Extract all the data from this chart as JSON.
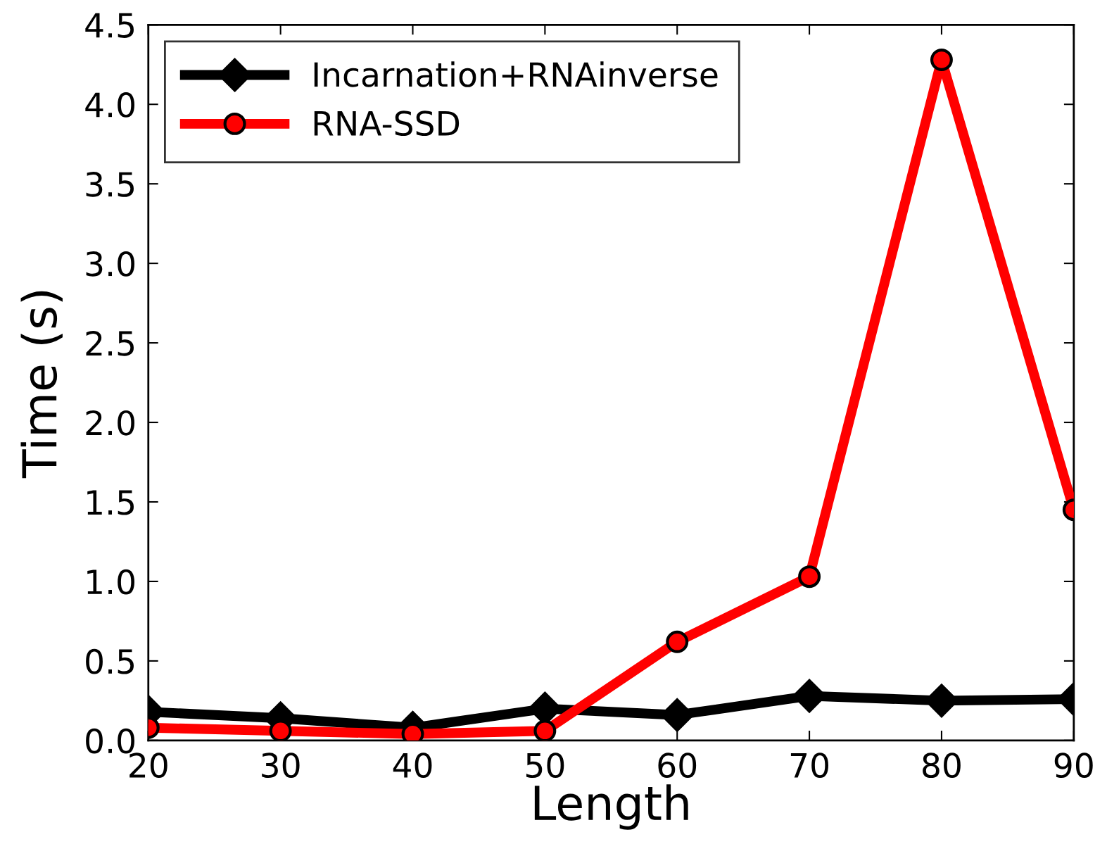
{
  "chart_data": {
    "type": "line",
    "xlabel": "Length",
    "ylabel": "Time (s)",
    "x": [
      20,
      30,
      40,
      50,
      60,
      70,
      80,
      90
    ],
    "series": [
      {
        "name": "Incarnation+RNAinverse",
        "color": "#000000",
        "marker": "diamond",
        "values": [
          0.18,
          0.14,
          0.08,
          0.2,
          0.16,
          0.28,
          0.25,
          0.26
        ]
      },
      {
        "name": "RNA-SSD",
        "color": "#ff0000",
        "marker": "circle",
        "values": [
          0.08,
          0.06,
          0.04,
          0.06,
          0.62,
          1.03,
          4.28,
          1.45
        ]
      }
    ],
    "xlim": [
      20,
      90
    ],
    "xticks": [
      20,
      30,
      40,
      50,
      60,
      70,
      80,
      90
    ],
    "ylim": [
      0,
      4.5
    ],
    "yticks": [
      {
        "value": 0,
        "label": "0.0"
      },
      0.5,
      {
        "value": 1,
        "label": "1.0"
      },
      1.5,
      {
        "value": 2,
        "label": "2.0"
      },
      2.5,
      {
        "value": 3,
        "label": "3.0"
      },
      3.5,
      {
        "value": 4,
        "label": "4.0"
      },
      4.5
    ],
    "grid": false,
    "legend": "top left",
    "line_style": "solid"
  }
}
